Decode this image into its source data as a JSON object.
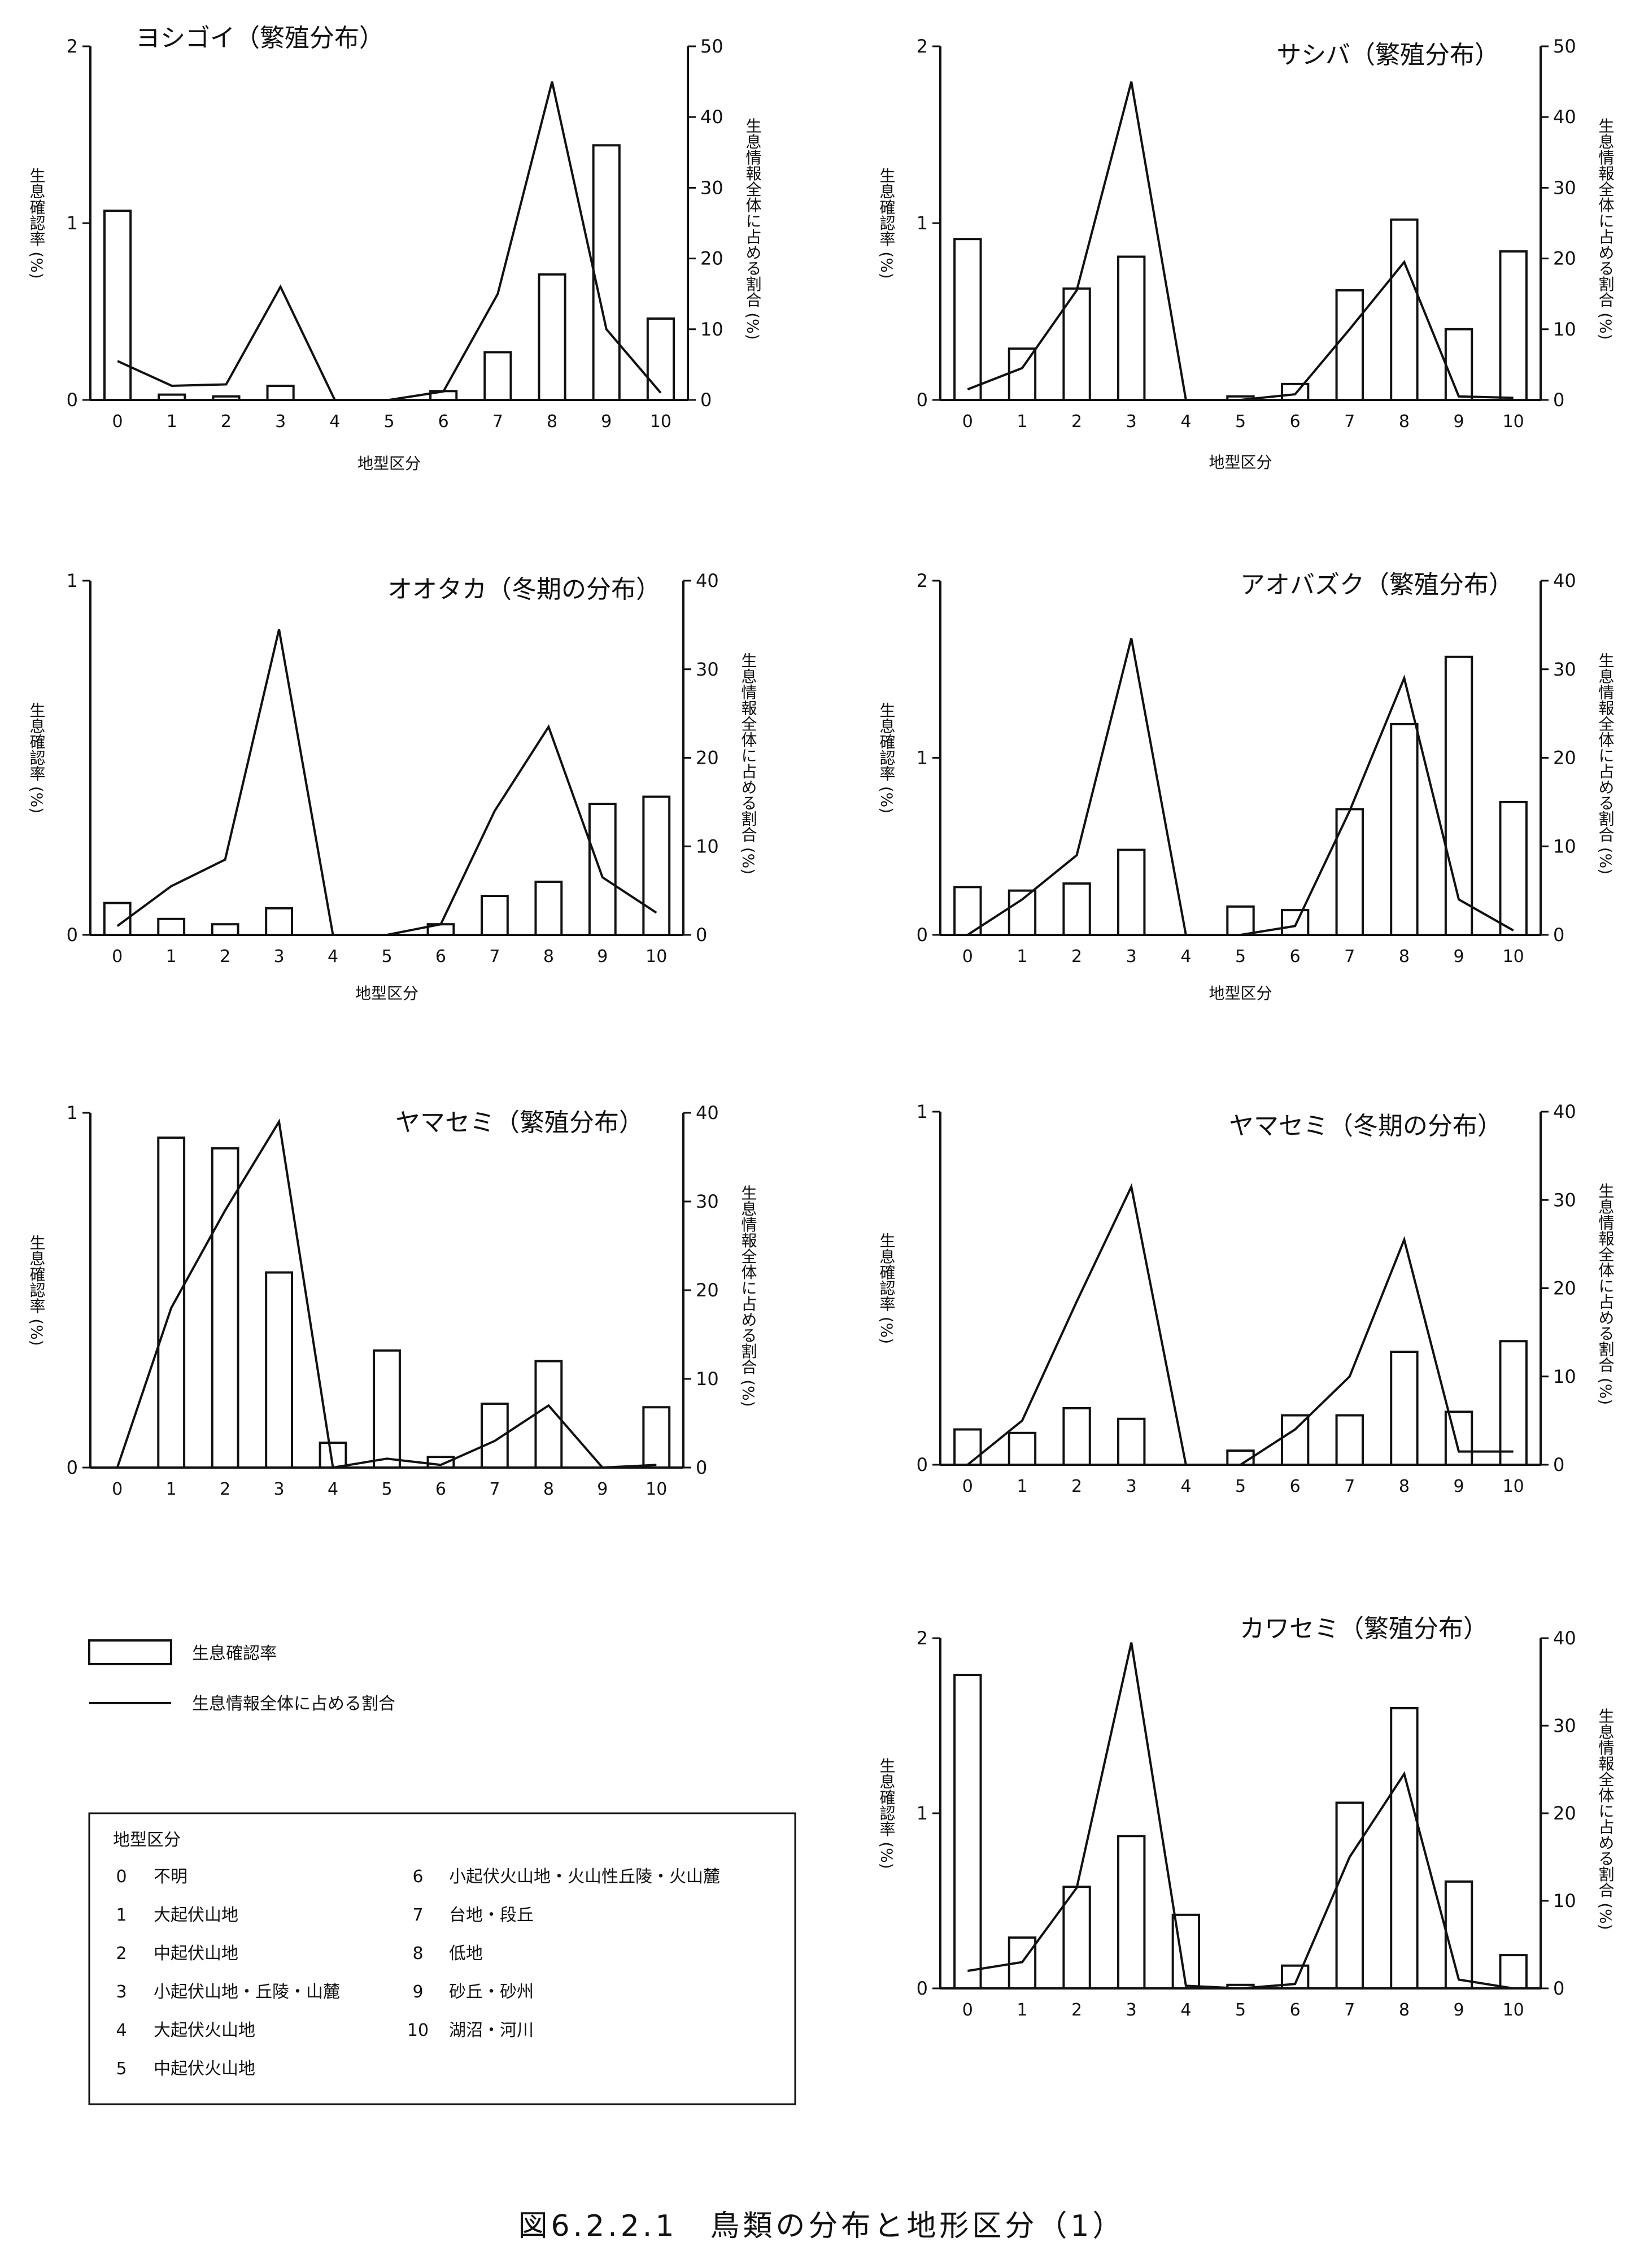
{
  "figure_caption": "図6.2.2.1　鳥類の分布と地形区分（1）",
  "legend": {
    "bar_label": "生息確認率",
    "line_label": "生息情報全体に占める割合"
  },
  "terrain_legend": {
    "title": "地型区分",
    "items": [
      {
        "code": "0",
        "name": "不明"
      },
      {
        "code": "1",
        "name": "大起伏山地"
      },
      {
        "code": "2",
        "name": "中起伏山地"
      },
      {
        "code": "3",
        "name": "小起伏山地・丘陵・山麓"
      },
      {
        "code": "4",
        "name": "大起伏火山地"
      },
      {
        "code": "5",
        "name": "中起伏火山地"
      },
      {
        "code": "6",
        "name": "小起伏火山地・火山性丘陵・火山麓"
      },
      {
        "code": "7",
        "name": "台地・段丘"
      },
      {
        "code": "8",
        "name": "低地"
      },
      {
        "code": "9",
        "name": "砂丘・砂州"
      },
      {
        "code": "10",
        "name": "湖沼・河川"
      }
    ]
  },
  "chart_data": [
    {
      "type": "bar",
      "title": "ヨシゴイ（繁殖分布）",
      "xlabel": "地型区分",
      "ylabel_left": "生息確認率 (%)",
      "ylabel_right": "生息情報全体に占める割合 (%)",
      "categories": [
        "0",
        "1",
        "2",
        "3",
        "4",
        "5",
        "6",
        "7",
        "8",
        "9",
        "10"
      ],
      "ylim_left": [
        0,
        2
      ],
      "yticks_left": [
        "0",
        "1",
        "2"
      ],
      "ylim_right": [
        0,
        50
      ],
      "yticks_right": [
        "0",
        "10",
        "20",
        "30",
        "40",
        "50"
      ],
      "grid": false,
      "series": [
        {
          "name": "生息確認率",
          "kind": "bar",
          "axis": "left",
          "values": [
            1.07,
            0.03,
            0.02,
            0.08,
            0,
            0,
            0.05,
            0.27,
            0.71,
            1.44,
            0.46
          ]
        },
        {
          "name": "生息情報全体に占める割合",
          "kind": "line",
          "axis": "right",
          "values": [
            5.5,
            2,
            2.2,
            16,
            0,
            0,
            1.2,
            15,
            45,
            10,
            1
          ]
        }
      ]
    },
    {
      "type": "bar",
      "title": "サシバ（繁殖分布）",
      "xlabel": "地型区分",
      "ylabel_left": "生息確認率 (%)",
      "ylabel_right": "生息情報全体に占める割合 (%)",
      "categories": [
        "0",
        "1",
        "2",
        "3",
        "4",
        "5",
        "6",
        "7",
        "8",
        "9",
        "10"
      ],
      "ylim_left": [
        0,
        2
      ],
      "yticks_left": [
        "0",
        "1",
        "2"
      ],
      "ylim_right": [
        0,
        50
      ],
      "yticks_right": [
        "0",
        "10",
        "20",
        "30",
        "40",
        "50"
      ],
      "grid": false,
      "series": [
        {
          "name": "生息確認率",
          "kind": "bar",
          "axis": "left",
          "values": [
            0.91,
            0.29,
            0.63,
            0.81,
            0,
            0.02,
            0.09,
            0.62,
            1.02,
            0.4,
            0.84
          ]
        },
        {
          "name": "生息情報全体に占める割合",
          "kind": "line",
          "axis": "right",
          "values": [
            1.5,
            4.5,
            15.5,
            45,
            0,
            0,
            0.8,
            10,
            19.5,
            0.5,
            0.3
          ]
        }
      ]
    },
    {
      "type": "bar",
      "title": "オオタカ（冬期の分布）",
      "xlabel": "地型区分",
      "ylabel_left": "生息確認率 (%)",
      "ylabel_right": "生息情報全体に占める割合 (%)",
      "categories": [
        "0",
        "1",
        "2",
        "3",
        "4",
        "5",
        "6",
        "7",
        "8",
        "9",
        "10"
      ],
      "ylim_left": [
        0,
        1
      ],
      "yticks_left": [
        "0",
        "1"
      ],
      "ylim_right": [
        0,
        40
      ],
      "yticks_right": [
        "0",
        "10",
        "20",
        "30",
        "40"
      ],
      "grid": false,
      "series": [
        {
          "name": "生息確認率",
          "kind": "bar",
          "axis": "left",
          "values": [
            0.09,
            0.045,
            0.03,
            0.075,
            0,
            0,
            0.03,
            0.11,
            0.15,
            0.37,
            0.39
          ]
        },
        {
          "name": "生息情報全体に占める割合",
          "kind": "line",
          "axis": "right",
          "values": [
            1,
            5.5,
            8.5,
            34.5,
            0,
            0,
            1.2,
            14,
            23.5,
            6.5,
            2.5
          ]
        }
      ]
    },
    {
      "type": "bar",
      "title": "アオバズク（繁殖分布）",
      "xlabel": "地型区分",
      "ylabel_left": "生息確認率 (%)",
      "ylabel_right": "生息情報全体に占める割合 (%)",
      "categories": [
        "0",
        "1",
        "2",
        "3",
        "4",
        "5",
        "6",
        "7",
        "8",
        "9",
        "10"
      ],
      "ylim_left": [
        0,
        2
      ],
      "yticks_left": [
        "0",
        "1",
        "2"
      ],
      "ylim_right": [
        0,
        40
      ],
      "yticks_right": [
        "0",
        "10",
        "20",
        "30",
        "40"
      ],
      "grid": false,
      "series": [
        {
          "name": "生息確認率",
          "kind": "bar",
          "axis": "left",
          "values": [
            0.27,
            0.25,
            0.29,
            0.48,
            0,
            0.16,
            0.14,
            0.71,
            1.19,
            1.57,
            0.75
          ]
        },
        {
          "name": "生息情報全体に占める割合",
          "kind": "line",
          "axis": "right",
          "values": [
            0,
            4,
            9,
            33.5,
            0,
            0,
            1,
            14,
            29,
            4,
            0.5
          ]
        }
      ]
    },
    {
      "type": "bar",
      "title": "ヤマセミ（繁殖分布）",
      "xlabel": "",
      "ylabel_left": "生息確認率 (%)",
      "ylabel_right": "生息情報全体に占める割合 (%)",
      "categories": [
        "0",
        "1",
        "2",
        "3",
        "4",
        "5",
        "6",
        "7",
        "8",
        "9",
        "10"
      ],
      "ylim_left": [
        0,
        1
      ],
      "yticks_left": [
        "0",
        "1"
      ],
      "ylim_right": [
        0,
        40
      ],
      "yticks_right": [
        "0",
        "10",
        "20",
        "30",
        "40"
      ],
      "grid": false,
      "series": [
        {
          "name": "生息確認率",
          "kind": "bar",
          "axis": "left",
          "values": [
            0,
            0.93,
            0.9,
            0.55,
            0.07,
            0.33,
            0.03,
            0.18,
            0.3,
            0,
            0.17
          ]
        },
        {
          "name": "生息情報全体に占める割合",
          "kind": "line",
          "axis": "right",
          "values": [
            0,
            18,
            29,
            39,
            0,
            1,
            0.3,
            3,
            7,
            0,
            0.3
          ]
        }
      ]
    },
    {
      "type": "bar",
      "title": "ヤマセミ（冬期の分布）",
      "xlabel": "",
      "ylabel_left": "生息確認率 (%)",
      "ylabel_right": "生息情報全体に占める割合 (%)",
      "categories": [
        "0",
        "1",
        "2",
        "3",
        "4",
        "5",
        "6",
        "7",
        "8",
        "9",
        "10"
      ],
      "ylim_left": [
        0,
        1
      ],
      "yticks_left": [
        "0",
        "1"
      ],
      "ylim_right": [
        0,
        40
      ],
      "yticks_right": [
        "0",
        "10",
        "20",
        "30",
        "40"
      ],
      "grid": false,
      "series": [
        {
          "name": "生息確認率",
          "kind": "bar",
          "axis": "left",
          "values": [
            0.1,
            0.09,
            0.16,
            0.13,
            0,
            0.04,
            0.14,
            0.14,
            0.32,
            0.15,
            0.35
          ]
        },
        {
          "name": "生息情報全体に占める割合",
          "kind": "line",
          "axis": "right",
          "values": [
            0,
            5,
            18.5,
            31.5,
            0,
            0,
            4,
            10,
            25.5,
            1.5,
            1.5
          ]
        }
      ]
    },
    {
      "type": "bar",
      "title": "カワセミ（繁殖分布）",
      "xlabel": "",
      "ylabel_left": "生息確認率 (%)",
      "ylabel_right": "生息情報全体に占める割合 (%)",
      "categories": [
        "0",
        "1",
        "2",
        "3",
        "4",
        "5",
        "6",
        "7",
        "8",
        "9",
        "10"
      ],
      "ylim_left": [
        0,
        2
      ],
      "yticks_left": [
        "0",
        "1",
        "2"
      ],
      "ylim_right": [
        0,
        40
      ],
      "yticks_right": [
        "0",
        "10",
        "20",
        "30",
        "40"
      ],
      "grid": false,
      "series": [
        {
          "name": "生息確認率",
          "kind": "bar",
          "axis": "left",
          "values": [
            1.79,
            0.29,
            0.58,
            0.87,
            0.42,
            0.02,
            0.13,
            1.06,
            1.6,
            0.61,
            0.19
          ]
        },
        {
          "name": "生息情報全体に占める割合",
          "kind": "line",
          "axis": "right",
          "values": [
            2,
            3,
            11.5,
            39.5,
            0.3,
            0,
            0.5,
            15,
            24.5,
            1,
            0
          ]
        }
      ]
    }
  ]
}
